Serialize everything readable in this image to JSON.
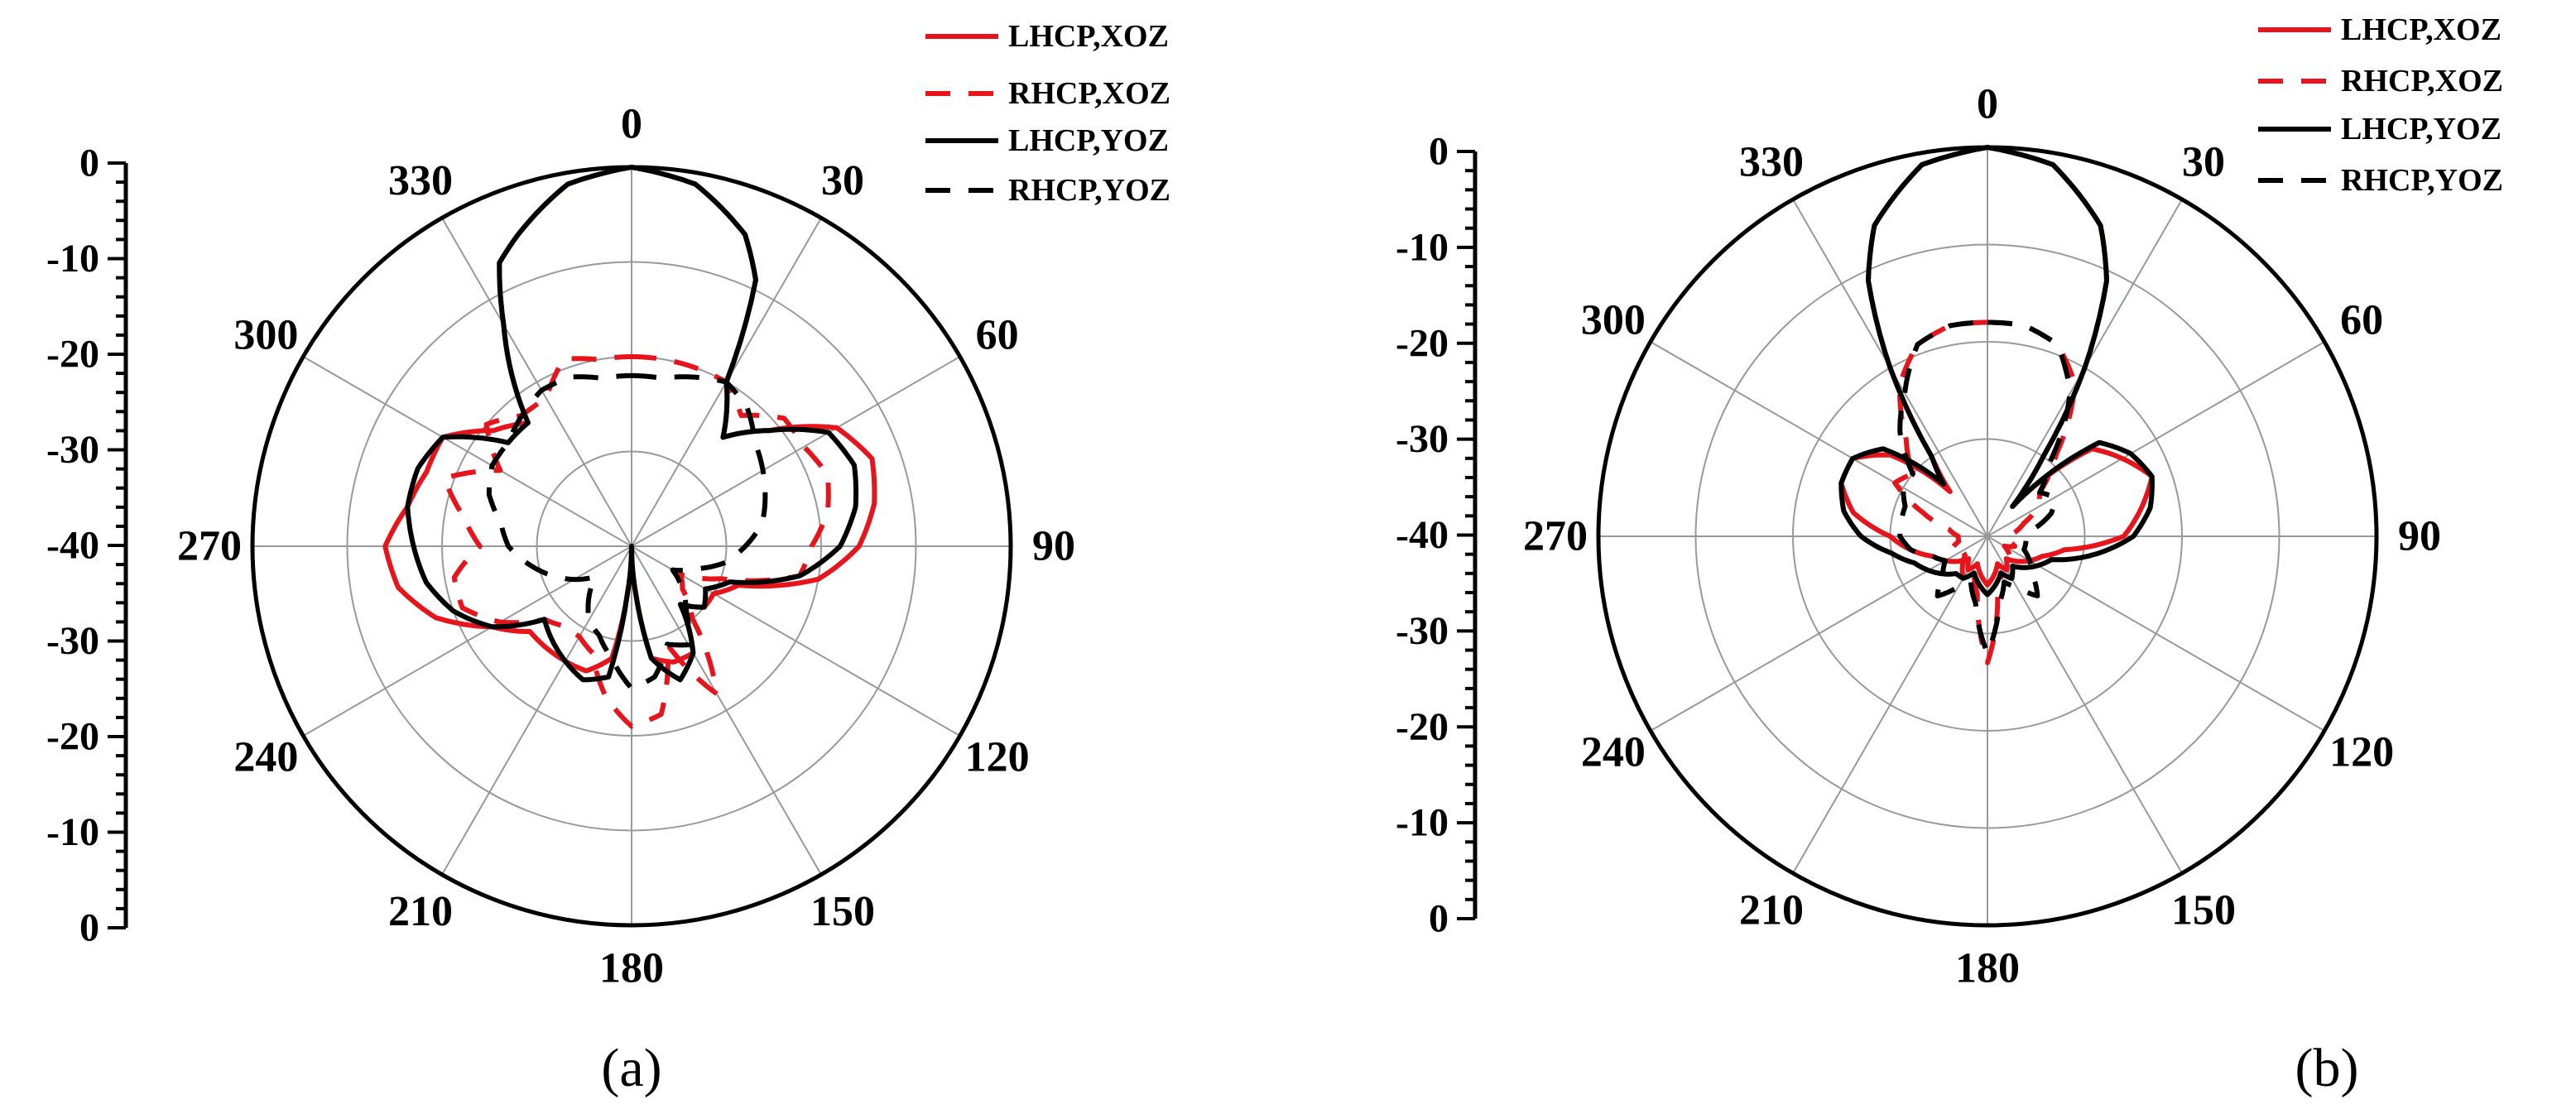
{
  "chart_data": [
    {
      "type": "line",
      "subtype": "polar",
      "label": "(a)",
      "angle_ticks": [
        "0",
        "30",
        "60",
        "90",
        "120",
        "150",
        "180",
        "210",
        "240",
        "270",
        "300",
        "330"
      ],
      "angle_units": "deg",
      "radial_range": [
        -40,
        0
      ],
      "radial_axis_labels": [
        "0",
        "-10",
        "-20",
        "-30",
        "-40",
        "-30",
        "-20",
        "-10",
        "0"
      ],
      "grid": true,
      "legend": "top-right",
      "series": [
        {
          "name": "LHCP,XOZ",
          "color": "#e8141b",
          "dash": "solid",
          "angles": [
            0,
            10,
            20,
            25,
            30,
            40,
            50,
            60,
            70,
            80,
            90,
            100,
            110,
            120,
            130,
            140,
            150,
            160,
            170,
            175,
            180,
            185,
            190,
            200,
            210,
            220,
            230,
            240,
            250,
            260,
            270,
            280,
            290,
            300,
            310,
            320,
            330,
            335,
            340,
            350,
            360
          ],
          "values": [
            0,
            -1.2,
            -5,
            -9,
            -20,
            -25,
            -21,
            -15,
            -13,
            -14,
            -16,
            -20,
            -28,
            -30,
            -30,
            -32,
            -27,
            -27,
            -28,
            -35,
            -40,
            -35,
            -28,
            -26,
            -26,
            -26,
            -26,
            -23,
            -18,
            -15,
            -14,
            -16,
            -17,
            -17,
            -21,
            -23,
            -13,
            -7,
            -5,
            -1.2,
            0
          ]
        },
        {
          "name": "RHCP,XOZ",
          "color": "#e8141b",
          "dash": "dash",
          "angles": [
            0,
            10,
            20,
            30,
            40,
            50,
            60,
            70,
            80,
            90,
            100,
            110,
            120,
            130,
            140,
            150,
            160,
            170,
            180,
            190,
            200,
            210,
            220,
            230,
            240,
            250,
            260,
            270,
            280,
            290,
            300,
            310,
            320,
            330,
            340,
            350,
            360
          ],
          "values": [
            -20,
            -20,
            -20,
            -20,
            -22,
            -19,
            -19,
            -18,
            -19,
            -21,
            -22,
            -30,
            -34,
            -33,
            -30,
            -22,
            -29,
            -22,
            -21,
            -24,
            -28,
            -29,
            -29,
            -28,
            -24,
            -21,
            -21,
            -24,
            -22,
            -19,
            -24,
            -20,
            -22,
            -22,
            -19,
            -20,
            -20
          ]
        },
        {
          "name": "LHCP,YOZ",
          "color": "#000000",
          "dash": "solid",
          "angles": [
            0,
            10,
            20,
            25,
            30,
            40,
            50,
            60,
            70,
            80,
            90,
            100,
            110,
            120,
            130,
            140,
            150,
            160,
            170,
            175,
            180,
            185,
            190,
            200,
            210,
            220,
            230,
            240,
            250,
            260,
            270,
            280,
            290,
            300,
            310,
            320,
            330,
            335,
            340,
            350,
            360
          ],
          "values": [
            0,
            -1.2,
            -5,
            -9,
            -20,
            -25,
            -21,
            -16,
            -15,
            -16,
            -18,
            -22,
            -29,
            -31,
            -30,
            -32,
            -27,
            -25,
            -28,
            -35,
            -40,
            -35,
            -26,
            -25,
            -26,
            -27,
            -28,
            -23,
            -20,
            -18,
            -17,
            -16,
            -16,
            -17,
            -23,
            -23,
            -13,
            -7,
            -5,
            -1.2,
            0
          ]
        },
        {
          "name": "RHCP,YOZ",
          "color": "#000000",
          "dash": "dash",
          "angles": [
            0,
            10,
            20,
            30,
            40,
            50,
            60,
            70,
            80,
            90,
            100,
            110,
            120,
            130,
            140,
            150,
            160,
            170,
            180,
            190,
            200,
            210,
            220,
            230,
            240,
            250,
            260,
            270,
            280,
            290,
            300,
            310,
            320,
            330,
            340,
            350,
            360
          ],
          "values": [
            -22,
            -22,
            -21,
            -20,
            -21,
            -23,
            -24,
            -25,
            -26,
            -28,
            -30,
            -33,
            -35,
            -33,
            -31,
            -28,
            -29,
            -26,
            -25,
            -28,
            -30,
            -31,
            -33,
            -35,
            -33,
            -31,
            -29,
            -27,
            -26,
            -24,
            -23,
            -23,
            -22,
            -21,
            -21,
            -22,
            -22
          ]
        }
      ]
    },
    {
      "type": "line",
      "subtype": "polar",
      "label": "(b)",
      "angle_ticks": [
        "0",
        "30",
        "60",
        "90",
        "120",
        "150",
        "180",
        "210",
        "240",
        "270",
        "300",
        "330"
      ],
      "angle_units": "deg",
      "radial_range": [
        -40,
        0
      ],
      "radial_axis_labels": [
        "0",
        "-10",
        "-20",
        "-30",
        "-40",
        "-30",
        "-20",
        "-10",
        "0"
      ],
      "grid": true,
      "legend": "top-right",
      "series": [
        {
          "name": "LHCP,XOZ",
          "color": "#e8141b",
          "dash": "solid",
          "angles": [
            0,
            10,
            20,
            25,
            30,
            35,
            40,
            50,
            60,
            70,
            80,
            90,
            100,
            110,
            120,
            130,
            140,
            150,
            160,
            170,
            180,
            190,
            200,
            210,
            220,
            230,
            240,
            250,
            260,
            270,
            280,
            290,
            300,
            310,
            320,
            325,
            330,
            335,
            340,
            350,
            360
          ],
          "values": [
            0,
            -1.2,
            -6,
            -11,
            -20,
            -30,
            -36,
            -26,
            -24,
            -22,
            -24,
            -26,
            -32,
            -34,
            -35,
            -36,
            -37,
            -36,
            -37,
            -36,
            -35,
            -36,
            -37,
            -36,
            -37,
            -36,
            -35,
            -34,
            -32,
            -30,
            -26,
            -24,
            -24,
            -27,
            -34,
            -30,
            -20,
            -11,
            -6,
            -1.2,
            0
          ]
        },
        {
          "name": "RHCP,XOZ",
          "color": "#e8141b",
          "dash": "dash",
          "angles": [
            0,
            10,
            20,
            30,
            40,
            50,
            60,
            70,
            80,
            90,
            100,
            110,
            120,
            130,
            140,
            150,
            160,
            170,
            180,
            190,
            200,
            210,
            220,
            230,
            240,
            250,
            260,
            270,
            280,
            290,
            300,
            310,
            320,
            330,
            340,
            350,
            360
          ],
          "values": [
            -18,
            -18,
            -19,
            -22,
            -29,
            -33,
            -34,
            -36,
            -37,
            -38,
            -38,
            -37,
            -38,
            -37,
            -36,
            -35,
            -36,
            -34,
            -27,
            -34,
            -36,
            -35,
            -36,
            -37,
            -37,
            -36,
            -37,
            -37,
            -36,
            -33,
            -29,
            -30,
            -27,
            -22,
            -19,
            -18,
            -18
          ]
        },
        {
          "name": "LHCP,YOZ",
          "color": "#000000",
          "dash": "solid",
          "angles": [
            0,
            10,
            20,
            25,
            30,
            35,
            40,
            50,
            60,
            70,
            80,
            90,
            100,
            110,
            120,
            130,
            140,
            150,
            160,
            170,
            180,
            190,
            200,
            210,
            220,
            230,
            240,
            250,
            260,
            270,
            280,
            290,
            300,
            310,
            320,
            325,
            330,
            335,
            340,
            350,
            360
          ],
          "values": [
            0,
            -1.2,
            -6,
            -11,
            -20,
            -30,
            -36,
            -25,
            -23,
            -22,
            -23,
            -25,
            -29,
            -33,
            -34,
            -35,
            -36,
            -35,
            -36,
            -35,
            -34,
            -35,
            -36,
            -35,
            -35,
            -34,
            -33,
            -32,
            -30,
            -27,
            -25,
            -24,
            -24,
            -26,
            -33,
            -30,
            -20,
            -11,
            -6,
            -1.2,
            0
          ]
        },
        {
          "name": "RHCP,YOZ",
          "color": "#000000",
          "dash": "dash",
          "angles": [
            0,
            10,
            20,
            30,
            40,
            50,
            60,
            70,
            80,
            90,
            100,
            110,
            120,
            130,
            140,
            150,
            160,
            170,
            180,
            190,
            200,
            210,
            220,
            230,
            240,
            250,
            260,
            270,
            280,
            290,
            300,
            310,
            320,
            330,
            340,
            350,
            360
          ],
          "values": [
            -18,
            -18,
            -19,
            -23,
            -30,
            -33,
            -32,
            -33,
            -35,
            -36,
            -36,
            -36,
            -35,
            -34,
            -32,
            -34,
            -35,
            -33,
            -28,
            -33,
            -35,
            -34,
            -32,
            -34,
            -35,
            -34,
            -32,
            -31,
            -31,
            -31,
            -30,
            -30,
            -26,
            -23,
            -19,
            -18,
            -18
          ]
        }
      ]
    }
  ]
}
